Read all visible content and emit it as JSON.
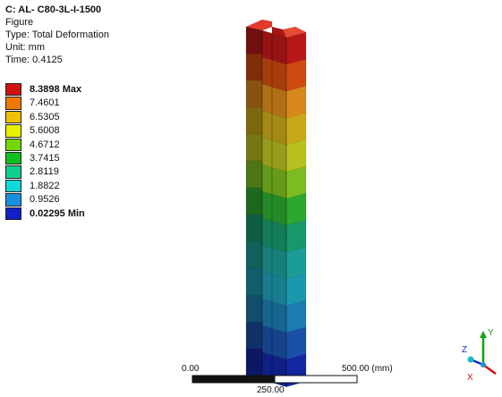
{
  "info": {
    "title": "C: AL- C80-3L-I-1500",
    "subtitle": "Figure",
    "type_line": "Type: Total Deformation",
    "unit_line": "Unit: mm",
    "time_line": "Time: 0.4125"
  },
  "legend": {
    "levels": [
      {
        "label": "8.3898 Max",
        "color": "#d01010",
        "bold": true
      },
      {
        "label": "7.4601",
        "color": "#f07800",
        "bold": false
      },
      {
        "label": "6.5305",
        "color": "#f0c000",
        "bold": false
      },
      {
        "label": "5.6008",
        "color": "#e6f000",
        "bold": false
      },
      {
        "label": "4.6712",
        "color": "#70d800",
        "bold": false
      },
      {
        "label": "3.7415",
        "color": "#10c020",
        "bold": false
      },
      {
        "label": "2.8119",
        "color": "#10d090",
        "bold": false
      },
      {
        "label": "1.8822",
        "color": "#10d8d8",
        "bold": false
      },
      {
        "label": "0.9526",
        "color": "#1890e0",
        "bold": false
      },
      {
        "label": "0.02295 Min",
        "color": "#1020c8",
        "bold": true
      }
    ]
  },
  "scale_bar": {
    "left_label": "0.00",
    "mid_label": "250.00",
    "right_label": "500.00 (mm)"
  },
  "triad": {
    "x_label": "X",
    "y_label": "Y",
    "z_label": "Z",
    "x_color": "#d01010",
    "y_color": "#10a010",
    "z_color": "#1030d0"
  },
  "model": {
    "band_colors": [
      "#b81818",
      "#cc4a10",
      "#d8881a",
      "#c8a818",
      "#b8c020",
      "#7cbc20",
      "#2ca830",
      "#18986a",
      "#1c9c96",
      "#1c98ae",
      "#1c7cb0",
      "#1a50a8",
      "#1426a0"
    ]
  }
}
